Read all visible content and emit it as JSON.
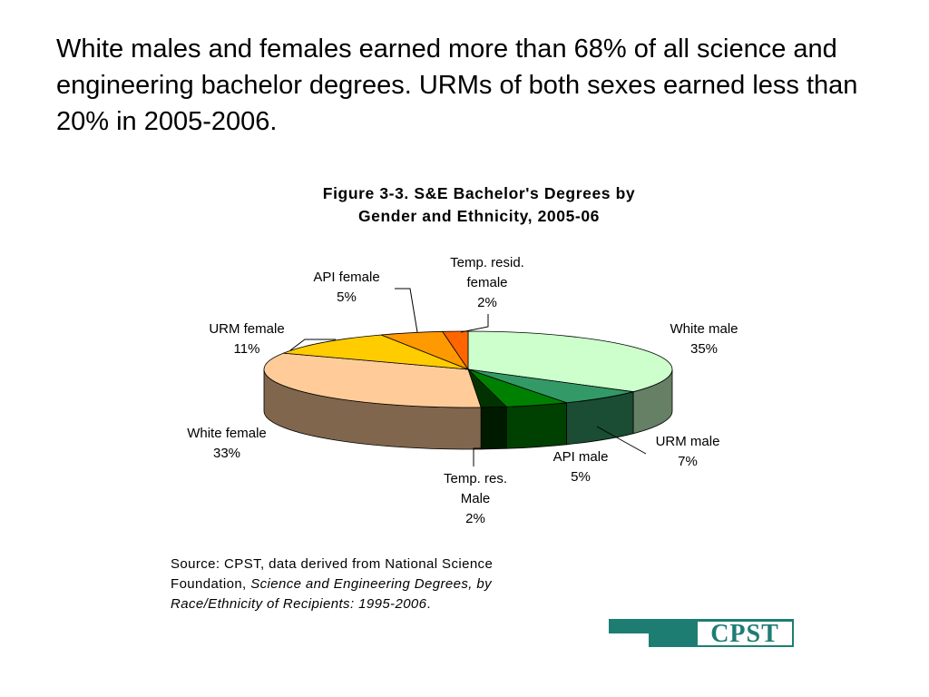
{
  "slide": {
    "headline": "White males and females earned more than 68% of all science and engineering bachelor degrees. URMs of both sexes earned less than 20% in 2005-2006."
  },
  "chart_data": {
    "type": "pie",
    "title_lines": [
      "Figure 3-3. S&E Bachelor's Degrees by",
      "Gender and Ethnicity, 2005-06"
    ],
    "units": "percent",
    "slices": [
      {
        "name": "White male",
        "value": 35,
        "label": "35%",
        "color": "#ccffcc"
      },
      {
        "name": "URM male",
        "value": 7,
        "label": "7%",
        "color": "#339966"
      },
      {
        "name": "API male",
        "value": 5,
        "label": "5%",
        "color": "#008000"
      },
      {
        "name": "Temp. res. Male",
        "value": 2,
        "label": "2%",
        "color": "#003300"
      },
      {
        "name": "White female",
        "value": 33,
        "label": "33%",
        "color": "#ffcc99"
      },
      {
        "name": "URM female",
        "value": 11,
        "label": "11%",
        "color": "#ffcc00"
      },
      {
        "name": "API female",
        "value": 5,
        "label": "5%",
        "color": "#ff9900"
      },
      {
        "name": "Temp. resid. female",
        "value": 2,
        "label": "2%",
        "color": "#ff6600"
      }
    ],
    "legend": "none"
  },
  "source": {
    "prefix": "Source: CPST, data derived from National Science Foundation, ",
    "title": "Science and Engineering Degrees, by Race/Ethnicity of Recipients: 1995-2006",
    "suffix": "."
  },
  "logo": {
    "text": "CPST",
    "color": "#1e7d73"
  }
}
